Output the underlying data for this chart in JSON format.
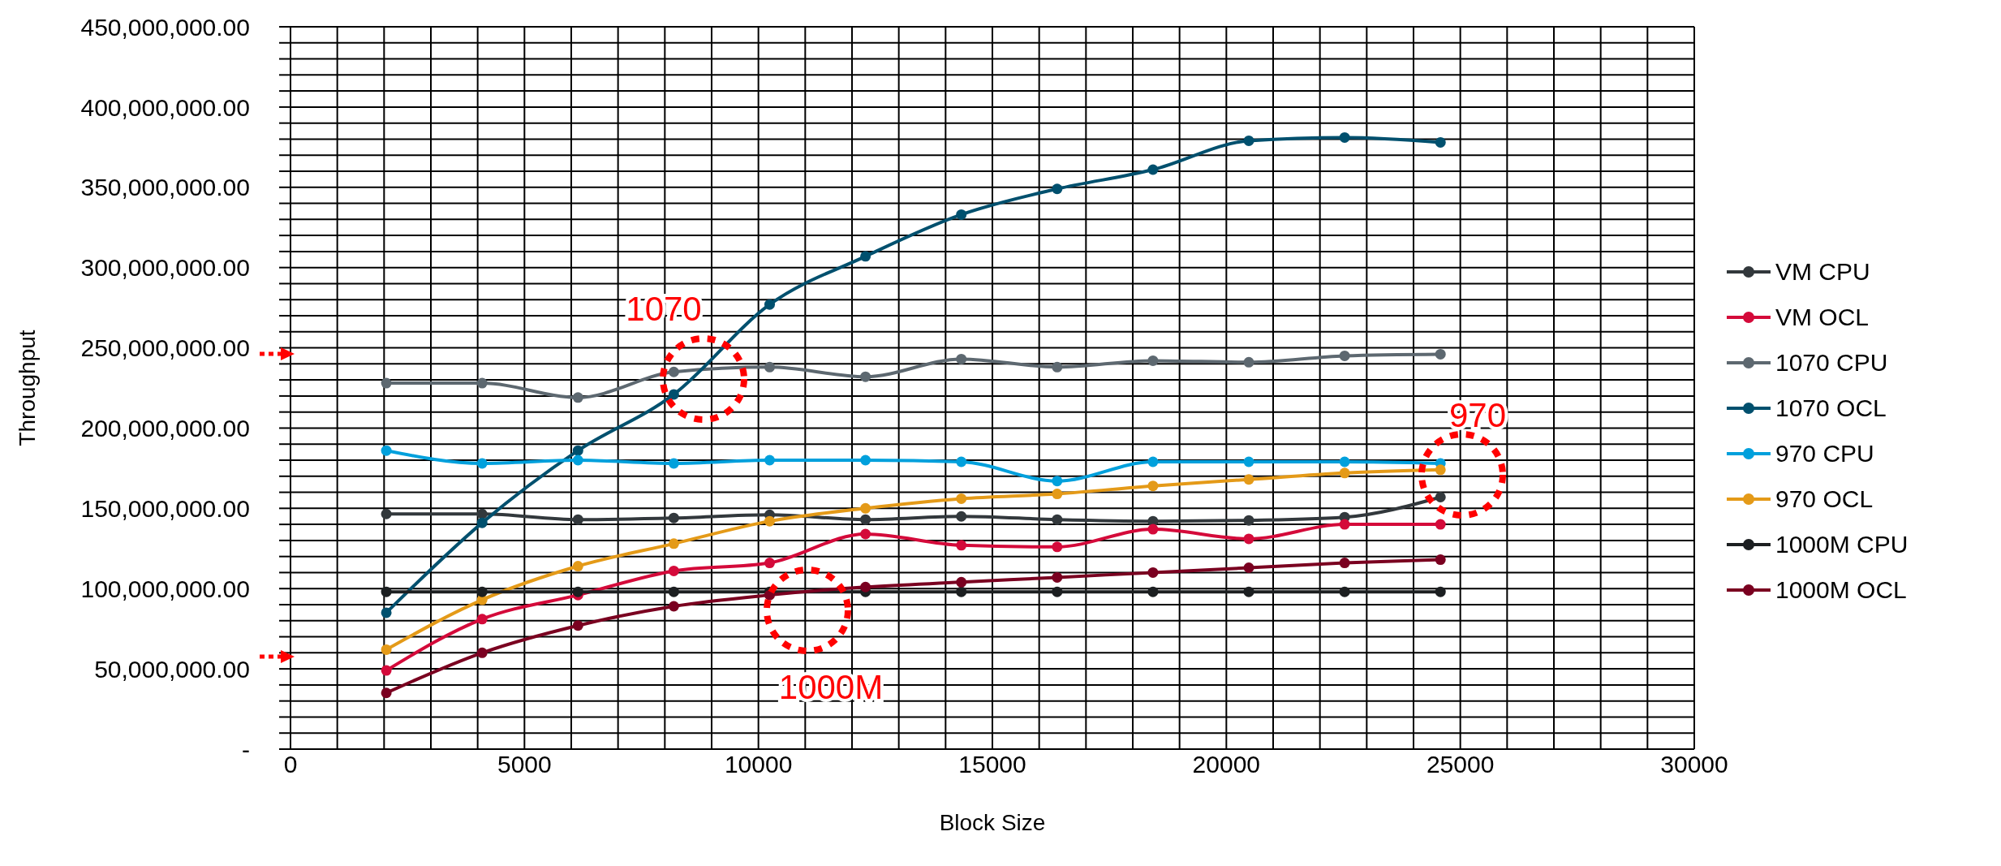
{
  "chart_data": {
    "type": "line",
    "xlabel": "Block Size",
    "ylabel": "Throughput",
    "x": [
      2048,
      4096,
      6144,
      8192,
      10240,
      12288,
      14336,
      16384,
      18432,
      20480,
      22528,
      24576
    ],
    "series": [
      {
        "name": "VM CPU",
        "color": "#32383c",
        "values": [
          146500000,
          146500000,
          143000000,
          144000000,
          146000000,
          143000000,
          145000000,
          143000000,
          142000000,
          142500000,
          144500000,
          157000000
        ]
      },
      {
        "name": "VM OCL",
        "color": "#d40a3a",
        "values": [
          49000000,
          81000000,
          96000000,
          111000000,
          116000000,
          134000000,
          127000000,
          126000000,
          137000000,
          131000000,
          140000000,
          140000000
        ]
      },
      {
        "name": "1070 CPU",
        "color": "#5d6870",
        "values": [
          228000000,
          228000000,
          219000000,
          235000000,
          238000000,
          232000000,
          243000000,
          238000000,
          242000000,
          241000000,
          245000000,
          246000000
        ]
      },
      {
        "name": "1070 OCL",
        "color": "#00506e",
        "values": [
          85000000,
          141000000,
          186000000,
          221000000,
          277000000,
          307000000,
          333000000,
          349000000,
          361000000,
          379000000,
          381000000,
          378000000
        ]
      },
      {
        "name": "970 CPU",
        "color": "#00a0dc",
        "values": [
          186000000,
          178000000,
          180000000,
          178000000,
          180000000,
          180000000,
          179000000,
          167000000,
          179000000,
          179000000,
          179000000,
          178000000
        ]
      },
      {
        "name": "970 OCL",
        "color": "#e49a18",
        "values": [
          62000000,
          93000000,
          114000000,
          128000000,
          142000000,
          150000000,
          156000000,
          159000000,
          164000000,
          168000000,
          172000000,
          174000000
        ]
      },
      {
        "name": "1000M CPU",
        "color": "#1c1f21",
        "values": [
          98000000,
          98000000,
          98000000,
          98000000,
          98000000,
          98000000,
          98000000,
          98000000,
          98000000,
          98000000,
          98000000,
          98000000
        ]
      },
      {
        "name": "1000M OCL",
        "color": "#7a0020",
        "values": [
          35000000,
          60000000,
          77000000,
          89000000,
          96000000,
          101000000,
          104000000,
          107000000,
          110000000,
          113000000,
          116000000,
          118000000
        ]
      }
    ],
    "xlim": [
      0,
      30000
    ],
    "xticks": [
      0,
      {
        "value": 1000,
        "label": null
      },
      {
        "value": 2000,
        "label": null
      },
      {
        "value": 3000,
        "label": null
      },
      {
        "value": 4000,
        "label": null
      },
      5000,
      {
        "value": 6000,
        "label": null
      },
      {
        "value": 7000,
        "label": null
      },
      {
        "value": 8000,
        "label": null
      },
      {
        "value": 9000,
        "label": null
      },
      10000,
      {
        "value": 11000,
        "label": null
      },
      {
        "value": 12000,
        "label": null
      },
      {
        "value": 13000,
        "label": null
      },
      {
        "value": 14000,
        "label": null
      },
      15000,
      {
        "value": 16000,
        "label": null
      },
      {
        "value": 17000,
        "label": null
      },
      {
        "value": 18000,
        "label": null
      },
      {
        "value": 19000,
        "label": null
      },
      20000,
      {
        "value": 21000,
        "label": null
      },
      {
        "value": 22000,
        "label": null
      },
      {
        "value": 23000,
        "label": null
      },
      {
        "value": 24000,
        "label": null
      },
      25000,
      {
        "value": 26000,
        "label": null
      },
      {
        "value": 27000,
        "label": null
      },
      {
        "value": 28000,
        "label": null
      },
      {
        "value": 29000,
        "label": null
      },
      30000
    ],
    "ylim": [
      0,
      450000000
    ],
    "yticks": [
      {
        "value": 0,
        "label": "-"
      },
      {
        "value": 10000000,
        "label": null
      },
      {
        "value": 20000000,
        "label": null
      },
      {
        "value": 30000000,
        "label": null
      },
      {
        "value": 40000000,
        "label": null
      },
      {
        "value": 50000000,
        "label": "50,000,000.00"
      },
      {
        "value": 60000000,
        "label": null
      },
      {
        "value": 70000000,
        "label": null
      },
      {
        "value": 80000000,
        "label": null
      },
      {
        "value": 90000000,
        "label": null
      },
      {
        "value": 100000000,
        "label": "100,000,000.00"
      },
      {
        "value": 110000000,
        "label": null
      },
      {
        "value": 120000000,
        "label": null
      },
      {
        "value": 130000000,
        "label": null
      },
      {
        "value": 140000000,
        "label": null
      },
      {
        "value": 150000000,
        "label": "150,000,000.00"
      },
      {
        "value": 160000000,
        "label": null
      },
      {
        "value": 170000000,
        "label": null
      },
      {
        "value": 180000000,
        "label": null
      },
      {
        "value": 190000000,
        "label": null
      },
      {
        "value": 200000000,
        "label": "200,000,000.00"
      },
      {
        "value": 210000000,
        "label": null
      },
      {
        "value": 220000000,
        "label": null
      },
      {
        "value": 230000000,
        "label": null
      },
      {
        "value": 240000000,
        "label": null
      },
      {
        "value": 250000000,
        "label": "250,000,000.00"
      },
      {
        "value": 260000000,
        "label": null
      },
      {
        "value": 270000000,
        "label": null
      },
      {
        "value": 280000000,
        "label": null
      },
      {
        "value": 290000000,
        "label": null
      },
      {
        "value": 300000000,
        "label": "300,000,000.00"
      },
      {
        "value": 310000000,
        "label": null
      },
      {
        "value": 320000000,
        "label": null
      },
      {
        "value": 330000000,
        "label": null
      },
      {
        "value": 340000000,
        "label": null
      },
      {
        "value": 350000000,
        "label": "350,000,000.00"
      },
      {
        "value": 360000000,
        "label": null
      },
      {
        "value": 370000000,
        "label": null
      },
      {
        "value": 380000000,
        "label": null
      },
      {
        "value": 390000000,
        "label": null
      },
      {
        "value": 400000000,
        "label": "400,000,000.00"
      },
      {
        "value": 410000000,
        "label": null
      },
      {
        "value": 420000000,
        "label": null
      },
      {
        "value": 430000000,
        "label": null
      },
      {
        "value": 440000000,
        "label": null
      },
      {
        "value": 450000000,
        "label": "450,000,000.00"
      }
    ],
    "grid": true,
    "legend": "right",
    "marker": "circle",
    "line_style": "solid",
    "annotations": [
      "1070",
      "970",
      "1000M"
    ]
  }
}
